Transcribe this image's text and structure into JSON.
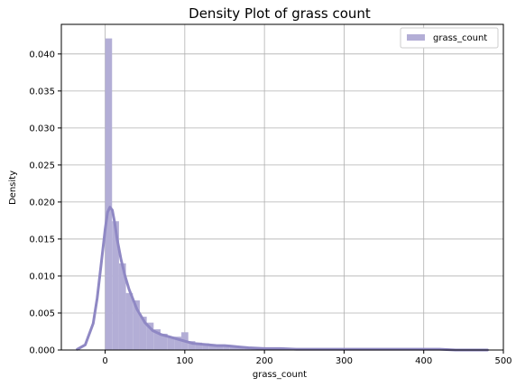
{
  "chart_data": {
    "type": "histogram",
    "title": "Density Plot of grass count",
    "xlabel": "grass_count",
    "ylabel": "Density",
    "xlim": [
      -55,
      500
    ],
    "ylim": [
      0,
      0.044
    ],
    "xticks": [
      0,
      100,
      200,
      300,
      400,
      500
    ],
    "yticks": [
      0.0,
      0.005,
      0.01,
      0.015,
      0.02,
      0.025,
      0.03,
      0.035,
      0.04
    ],
    "ytick_labels": [
      "0.000",
      "0.005",
      "0.010",
      "0.015",
      "0.020",
      "0.025",
      "0.030",
      "0.035",
      "0.040"
    ],
    "grid": true,
    "legend": {
      "position": "top-right",
      "entries": [
        "grass_count"
      ]
    },
    "colors": {
      "bars": "#b3aed6",
      "kde": "#8f88c4",
      "grid": "#b0b0b0"
    },
    "histogram": {
      "bin_width": 8.7,
      "bin_start": 0,
      "densities": [
        0.0421,
        0.0174,
        0.0117,
        0.0077,
        0.0067,
        0.0045,
        0.0037,
        0.0028,
        0.0022,
        0.0018,
        0.0018,
        0.0024,
        0.0012,
        0.001,
        0.0009,
        0.0008,
        0.0006,
        0.0006,
        0.0006,
        0.0005,
        0.0004,
        0.0003,
        0.0003,
        0.0003,
        0.0002,
        0.0002,
        0.0001,
        0.0001,
        0.0001,
        0.0001,
        0.0001,
        0.0001,
        0.0001,
        0.0001,
        0.0001,
        0.0001,
        0.0001,
        0.0001,
        0.0001,
        0.0001,
        0.0001,
        0.0001,
        0.0001,
        0.0001,
        0.0001,
        0.0001,
        0.0001,
        0.0001,
        0.0001,
        0.0001,
        0.0001,
        0.0001,
        0.0001,
        0.0001
      ]
    },
    "kde": {
      "x": [
        -35,
        -25,
        -15,
        -10,
        -5,
        0,
        3,
        6,
        9,
        12,
        15,
        20,
        25,
        30,
        40,
        50,
        60,
        70,
        80,
        90,
        100,
        110,
        120,
        130,
        140,
        150,
        160,
        170,
        180,
        200,
        220,
        240,
        260,
        280,
        300,
        320,
        340,
        360,
        380,
        400,
        420,
        440,
        460,
        480
      ],
      "y": [
        0.0001,
        0.0007,
        0.0036,
        0.007,
        0.0116,
        0.0163,
        0.0186,
        0.0193,
        0.0189,
        0.0172,
        0.015,
        0.0122,
        0.01,
        0.0082,
        0.0055,
        0.0037,
        0.0026,
        0.0021,
        0.0018,
        0.0015,
        0.0012,
        0.0009,
        0.0008,
        0.0007,
        0.0006,
        0.0006,
        0.0005,
        0.0004,
        0.0003,
        0.0002,
        0.0002,
        0.0001,
        0.0001,
        0.0001,
        0.0001,
        0.0001,
        0.0001,
        0.0001,
        0.0001,
        0.0001,
        0.0001,
        0.0,
        0.0,
        0.0
      ]
    }
  }
}
